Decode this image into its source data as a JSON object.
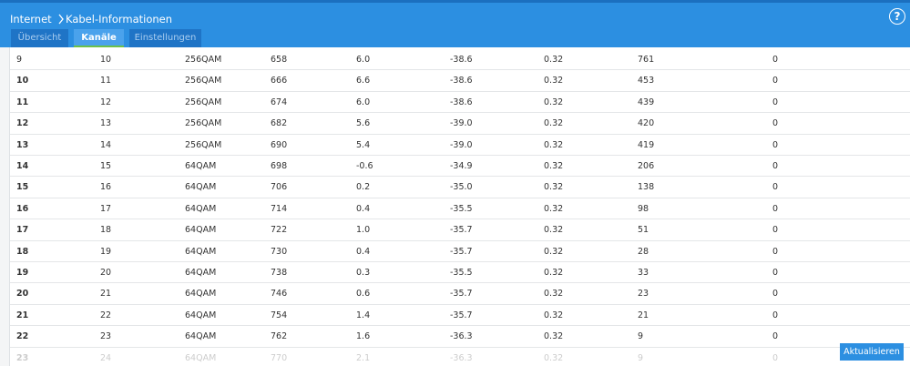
{
  "header": {
    "breadcrumb": [
      "Internet",
      "Kabel-Informationen"
    ],
    "help": "?"
  },
  "tabs": [
    "Übersicht",
    "Kanäle",
    "Einstellungen"
  ],
  "table": {
    "rows": [
      [
        "9",
        "10",
        "256QAM",
        "658",
        "6.0",
        "-38.6",
        "0.32",
        "761",
        "0"
      ],
      [
        "10",
        "11",
        "256QAM",
        "666",
        "6.6",
        "-38.6",
        "0.32",
        "453",
        "0"
      ],
      [
        "11",
        "12",
        "256QAM",
        "674",
        "6.0",
        "-38.6",
        "0.32",
        "439",
        "0"
      ],
      [
        "12",
        "13",
        "256QAM",
        "682",
        "5.6",
        "-39.0",
        "0.32",
        "420",
        "0"
      ],
      [
        "13",
        "14",
        "256QAM",
        "690",
        "5.4",
        "-39.0",
        "0.32",
        "419",
        "0"
      ],
      [
        "14",
        "15",
        "64QAM",
        "698",
        "-0.6",
        "-34.9",
        "0.32",
        "206",
        "0"
      ],
      [
        "15",
        "16",
        "64QAM",
        "706",
        "0.2",
        "-35.0",
        "0.32",
        "138",
        "0"
      ],
      [
        "16",
        "17",
        "64QAM",
        "714",
        "0.4",
        "-35.5",
        "0.32",
        "98",
        "0"
      ],
      [
        "17",
        "18",
        "64QAM",
        "722",
        "1.0",
        "-35.7",
        "0.32",
        "51",
        "0"
      ],
      [
        "18",
        "19",
        "64QAM",
        "730",
        "0.4",
        "-35.7",
        "0.32",
        "28",
        "0"
      ],
      [
        "19",
        "20",
        "64QAM",
        "738",
        "0.3",
        "-35.5",
        "0.32",
        "33",
        "0"
      ],
      [
        "20",
        "21",
        "64QAM",
        "746",
        "0.6",
        "-35.7",
        "0.32",
        "23",
        "0"
      ],
      [
        "21",
        "22",
        "64QAM",
        "754",
        "1.4",
        "-35.7",
        "0.32",
        "21",
        "0"
      ],
      [
        "22",
        "23",
        "64QAM",
        "762",
        "1.6",
        "-36.3",
        "0.32",
        "9",
        "0"
      ],
      [
        "23",
        "24",
        "64QAM",
        "770",
        "2.1",
        "-36.3",
        "0.32",
        "9",
        "0"
      ]
    ]
  },
  "button": "Aktualisieren"
}
